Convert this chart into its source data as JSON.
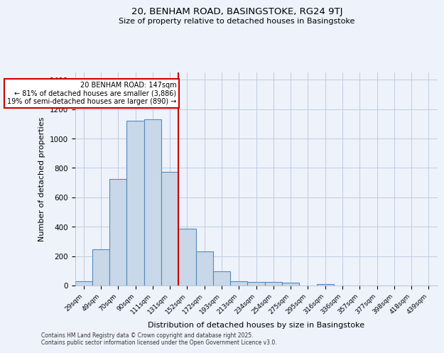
{
  "title1": "20, BENHAM ROAD, BASINGSTOKE, RG24 9TJ",
  "title2": "Size of property relative to detached houses in Basingstoke",
  "xlabel": "Distribution of detached houses by size in Basingstoke",
  "ylabel": "Number of detached properties",
  "bar_labels": [
    "29sqm",
    "49sqm",
    "70sqm",
    "90sqm",
    "111sqm",
    "131sqm",
    "152sqm",
    "172sqm",
    "193sqm",
    "213sqm",
    "234sqm",
    "254sqm",
    "275sqm",
    "295sqm",
    "316sqm",
    "336sqm",
    "357sqm",
    "377sqm",
    "398sqm",
    "418sqm",
    "439sqm"
  ],
  "bar_values": [
    30,
    245,
    725,
    1120,
    1130,
    775,
    385,
    230,
    95,
    30,
    25,
    22,
    18,
    0,
    10,
    0,
    0,
    0,
    0,
    0,
    0
  ],
  "bar_color": "#c8d8e8",
  "bar_edge_color": "#5588bb",
  "annotation_line1": "20 BENHAM ROAD: 147sqm",
  "annotation_line2": "← 81% of detached houses are smaller (3,886)",
  "annotation_line3": "19% of semi-detached houses are larger (890) →",
  "redline_bin_index": 6,
  "ylim": [
    0,
    1450
  ],
  "yticks": [
    0,
    200,
    400,
    600,
    800,
    1000,
    1200,
    1400
  ],
  "footer1": "Contains HM Land Registry data © Crown copyright and database right 2025.",
  "footer2": "Contains public sector information licensed under the Open Government Licence v3.0.",
  "bg_color": "#eef2fb",
  "grid_color": "#c0cce0",
  "annotation_box_color": "#ffffff",
  "annotation_box_edge": "#cc0000",
  "redline_color": "#cc0000",
  "title1_fontsize": 9.5,
  "title2_fontsize": 8.0,
  "ylabel_fontsize": 8,
  "xlabel_fontsize": 8,
  "tick_fontsize": 7.5,
  "xtick_fontsize": 6.5,
  "annotation_fontsize": 7.0,
  "footer_fontsize": 5.5
}
